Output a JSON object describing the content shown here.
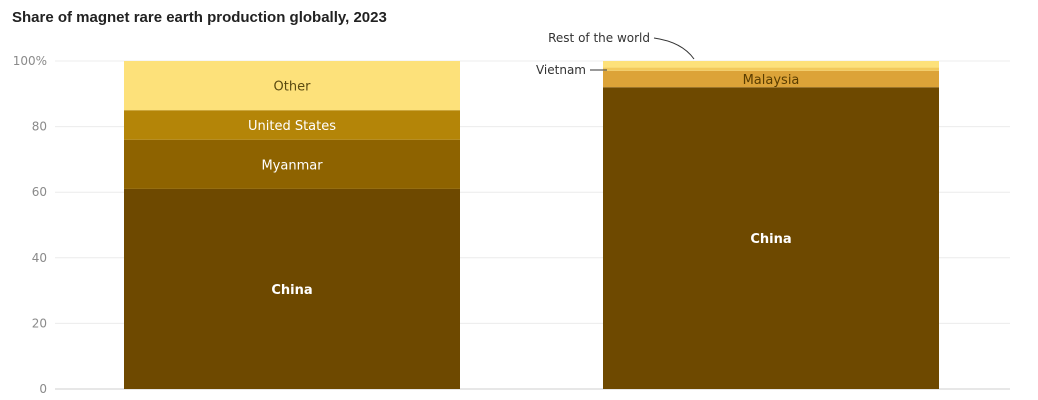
{
  "chart_data": {
    "type": "bar",
    "stacked": true,
    "title": "Share of magnet rare earth production globally, 2023",
    "xlabel": "",
    "ylabel": "",
    "ylim": [
      0,
      100
    ],
    "yticks": [
      0,
      20,
      40,
      60,
      80,
      100
    ],
    "ytick_labels": [
      "0",
      "20",
      "40",
      "60",
      "80",
      "100%"
    ],
    "grid": true,
    "categories": [
      "",
      ""
    ],
    "series": [
      {
        "name": "China",
        "color": "#6e4900",
        "label_color": "#ffffff",
        "label_bold": true,
        "values": [
          61,
          92
        ],
        "labeled": [
          true,
          true
        ]
      },
      {
        "name": "Myanmar",
        "color": "#8e6300",
        "label_color": "#ffffff",
        "label_bold": false,
        "values": [
          15,
          0
        ],
        "labeled": [
          true,
          false
        ]
      },
      {
        "name": "United States",
        "color": "#b48508",
        "label_color": "#ffffff",
        "label_bold": false,
        "values": [
          9,
          0
        ],
        "labeled": [
          true,
          false
        ]
      },
      {
        "name": "Malaysia",
        "color": "#dca338",
        "label_color": "#5a3d00",
        "label_bold": false,
        "values": [
          0,
          5
        ],
        "labeled": [
          false,
          true
        ]
      },
      {
        "name": "Vietnam",
        "color": "#f2c95c",
        "label_color": "#333333",
        "label_bold": false,
        "values": [
          0,
          1
        ],
        "labeled": [
          false,
          false
        ]
      },
      {
        "name": "Other",
        "color": "#fde17a",
        "label_color": "#5a4a10",
        "label_bold": false,
        "values": [
          15,
          0
        ],
        "labeled": [
          true,
          false
        ]
      },
      {
        "name": "Rest of the world",
        "color": "#fde17a",
        "label_color": "#333333",
        "label_bold": false,
        "values": [
          0,
          2
        ],
        "labeled": [
          false,
          false
        ]
      }
    ],
    "callouts": [
      {
        "text": "Vietnam",
        "category": 1,
        "series": "Vietnam"
      },
      {
        "text": "Rest of the world",
        "category": 1,
        "series": "Rest of the world"
      }
    ]
  }
}
